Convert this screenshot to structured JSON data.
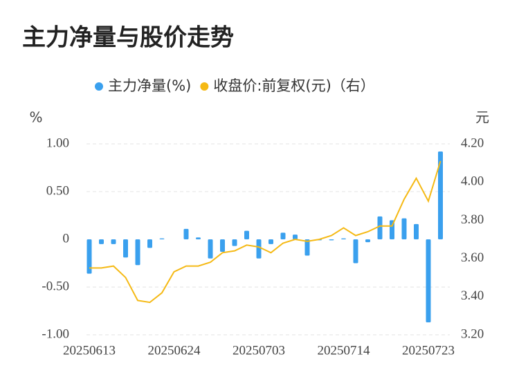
{
  "chart_data": {
    "type": "bar_line",
    "title": "主力净量与股价走势",
    "y_label": "%",
    "y2_label": "元",
    "categories": [
      "20250613",
      null,
      null,
      null,
      null,
      null,
      null,
      "20250624",
      null,
      null,
      null,
      null,
      null,
      null,
      "20250703",
      null,
      null,
      null,
      null,
      null,
      null,
      "20250714",
      null,
      null,
      null,
      null,
      null,
      null,
      "20250723",
      null
    ],
    "series": [
      {
        "name": "主力净量(%)",
        "type": "bar",
        "color": "#3aa0ee",
        "values": [
          -0.36,
          -0.05,
          -0.05,
          -0.19,
          -0.27,
          -0.09,
          0.01,
          0,
          0.11,
          0.02,
          -0.2,
          -0.13,
          -0.07,
          0.09,
          -0.2,
          -0.05,
          0.07,
          0.05,
          -0.17,
          -0.01,
          -0.01,
          0.01,
          -0.25,
          -0.03,
          0.24,
          0.2,
          0.22,
          0.16,
          -0.87,
          0.92
        ]
      },
      {
        "name": "收盘价:前复权(元)（右）",
        "type": "line",
        "axis": "y2",
        "color": "#f5b914",
        "values": [
          3.55,
          3.55,
          3.56,
          3.5,
          3.38,
          3.37,
          3.42,
          3.53,
          3.56,
          3.56,
          3.58,
          3.63,
          3.64,
          3.67,
          3.66,
          3.63,
          3.68,
          3.7,
          3.69,
          3.7,
          3.72,
          3.76,
          3.72,
          3.74,
          3.77,
          3.77,
          3.91,
          4.02,
          3.9,
          4.11
        ]
      }
    ],
    "ylim": [
      -1,
      1
    ],
    "yticks": [
      {
        "value": 1,
        "label": "1.00"
      },
      {
        "value": 0.5,
        "label": "0.50"
      },
      0,
      {
        "value": -0.5,
        "label": "-0.50"
      },
      {
        "value": -1,
        "label": "-1.00"
      }
    ],
    "y2lim": [
      3.2,
      4.2
    ],
    "y2ticks": [
      {
        "value": 4.2,
        "label": "4.20"
      },
      {
        "value": 4.0,
        "label": "4.00"
      },
      {
        "value": 3.8,
        "label": "3.80"
      },
      {
        "value": 3.6,
        "label": "3.60"
      },
      {
        "value": 3.4,
        "label": "3.40"
      },
      {
        "value": 3.2,
        "label": "3.20"
      }
    ],
    "grid": true,
    "legend": "top"
  }
}
